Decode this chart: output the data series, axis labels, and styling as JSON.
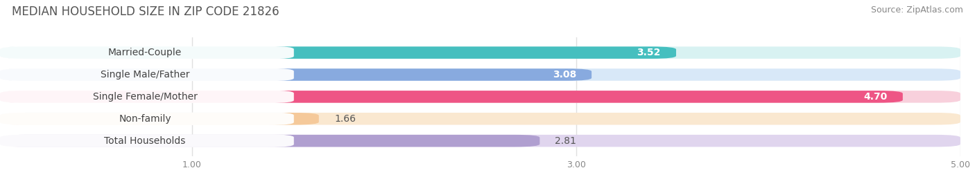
{
  "title": "MEDIAN HOUSEHOLD SIZE IN ZIP CODE 21826",
  "source": "Source: ZipAtlas.com",
  "categories": [
    "Married-Couple",
    "Single Male/Father",
    "Single Female/Mother",
    "Non-family",
    "Total Households"
  ],
  "values": [
    3.52,
    3.08,
    4.7,
    1.66,
    2.81
  ],
  "bar_colors": [
    "#45BFBF",
    "#88AADF",
    "#EE5585",
    "#F5C99A",
    "#B09FD0"
  ],
  "bar_bg_colors": [
    "#D8F2F2",
    "#D8E8F8",
    "#F8D0DC",
    "#FAE8D0",
    "#E0D5EE"
  ],
  "value_inside": [
    true,
    true,
    true,
    false,
    false
  ],
  "xlim": [
    0,
    5.0
  ],
  "xticks": [
    1.0,
    3.0,
    5.0
  ],
  "xtick_labels": [
    "1.00",
    "3.00",
    "5.00"
  ],
  "title_fontsize": 12,
  "source_fontsize": 9,
  "label_fontsize": 10,
  "value_fontsize": 10,
  "bar_height": 0.55,
  "background_color": "#ffffff",
  "grid_color": "#e0e0e0",
  "value_color_inside": "#ffffff",
  "value_color_outside": "#555555"
}
